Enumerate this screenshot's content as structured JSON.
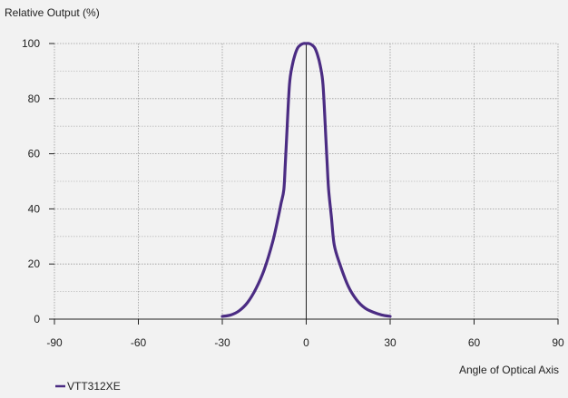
{
  "chart_data": {
    "type": "line",
    "ylabel": "Relative Output (%)",
    "xlabel": "Angle of Optical Axis",
    "xlim": [
      -90,
      90
    ],
    "ylim": [
      0,
      100
    ],
    "x_ticks": [
      -90,
      -60,
      -30,
      0,
      30,
      60,
      90
    ],
    "y_ticks": [
      0,
      20,
      40,
      60,
      80,
      100
    ],
    "x_tick_labels": [
      "-90",
      "-60",
      "-30",
      "0",
      "30",
      "60",
      "90"
    ],
    "y_tick_labels": [
      "0",
      "20",
      "40",
      "60",
      "80",
      "100"
    ],
    "grid": true,
    "legend_position": "bottom-left",
    "series": [
      {
        "name": "VTT312XE",
        "color": "#4b2c83",
        "x": [
          -30,
          -27,
          -24,
          -21,
          -18,
          -15,
          -12,
          -10,
          -9,
          -8,
          -7.5,
          -7,
          -6,
          -5,
          -4,
          -3,
          -2,
          -1,
          0,
          1,
          2,
          3,
          4,
          5,
          6,
          7,
          7.5,
          8,
          9,
          10,
          12,
          15,
          18,
          21,
          24,
          27,
          30
        ],
        "y": [
          1,
          1.5,
          3,
          6,
          11,
          18,
          28,
          37,
          42,
          47,
          56,
          66,
          85,
          92,
          96,
          98.5,
          99.5,
          100,
          100,
          100,
          99.5,
          98.5,
          96,
          92,
          85,
          66,
          56,
          47,
          37,
          27,
          20,
          12,
          7,
          4,
          2.5,
          1.5,
          1
        ]
      }
    ]
  }
}
